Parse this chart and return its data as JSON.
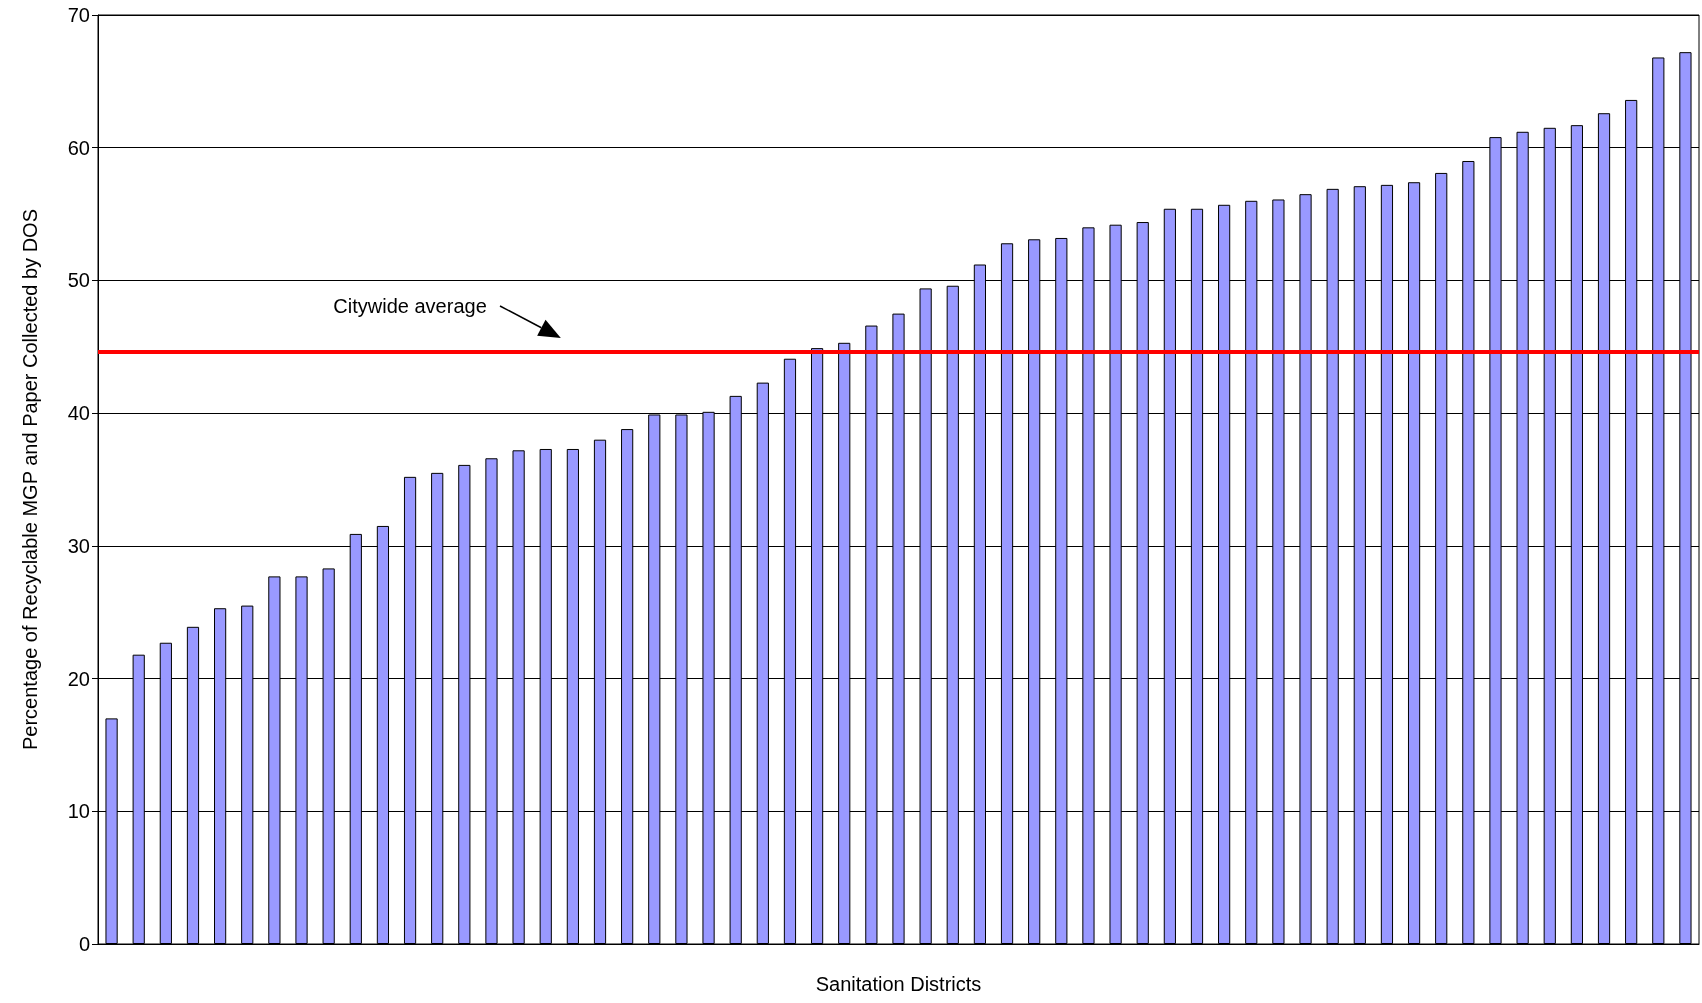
{
  "chart_data": {
    "type": "bar",
    "xlabel": "Sanitation Districts",
    "ylabel": "Percentage of Recyclable MGP and Paper Collected by DOS",
    "categories": [
      null,
      null,
      null,
      null,
      null,
      null,
      null,
      null,
      null,
      null,
      null,
      null,
      null,
      null,
      null,
      null,
      null,
      null,
      null,
      null,
      null,
      null,
      null,
      null,
      null,
      null,
      null,
      null,
      null,
      null,
      null,
      null,
      null,
      null,
      null,
      null,
      null,
      null,
      null,
      null,
      null,
      null,
      null,
      null,
      null,
      null,
      null,
      null,
      null,
      null,
      null,
      null,
      null,
      null,
      null,
      null,
      null,
      null,
      null
    ],
    "values": [
      17.0,
      21.8,
      22.7,
      23.9,
      25.3,
      25.5,
      27.7,
      27.7,
      28.3,
      30.9,
      31.5,
      35.2,
      35.5,
      36.1,
      36.6,
      37.2,
      37.3,
      37.3,
      38.0,
      38.8,
      39.9,
      39.9,
      40.1,
      41.3,
      42.3,
      44.1,
      44.9,
      45.3,
      46.6,
      47.5,
      49.4,
      49.6,
      51.2,
      52.8,
      53.1,
      53.2,
      54.0,
      54.2,
      54.4,
      55.4,
      55.4,
      55.7,
      56.0,
      56.1,
      56.5,
      56.9,
      57.1,
      57.2,
      57.4,
      58.1,
      59.0,
      60.8,
      61.2,
      61.5,
      61.7,
      62.6,
      63.6,
      66.8,
      67.2
    ],
    "color": "#9999ff",
    "ylim": [
      0,
      70
    ],
    "yticks": [
      0,
      10,
      20,
      30,
      40,
      50,
      60,
      70
    ],
    "grid": "y",
    "ref_lines": [
      {
        "axis": "y",
        "value": 44.6,
        "label": "Citywide average",
        "color": "#ff0000"
      }
    ]
  }
}
